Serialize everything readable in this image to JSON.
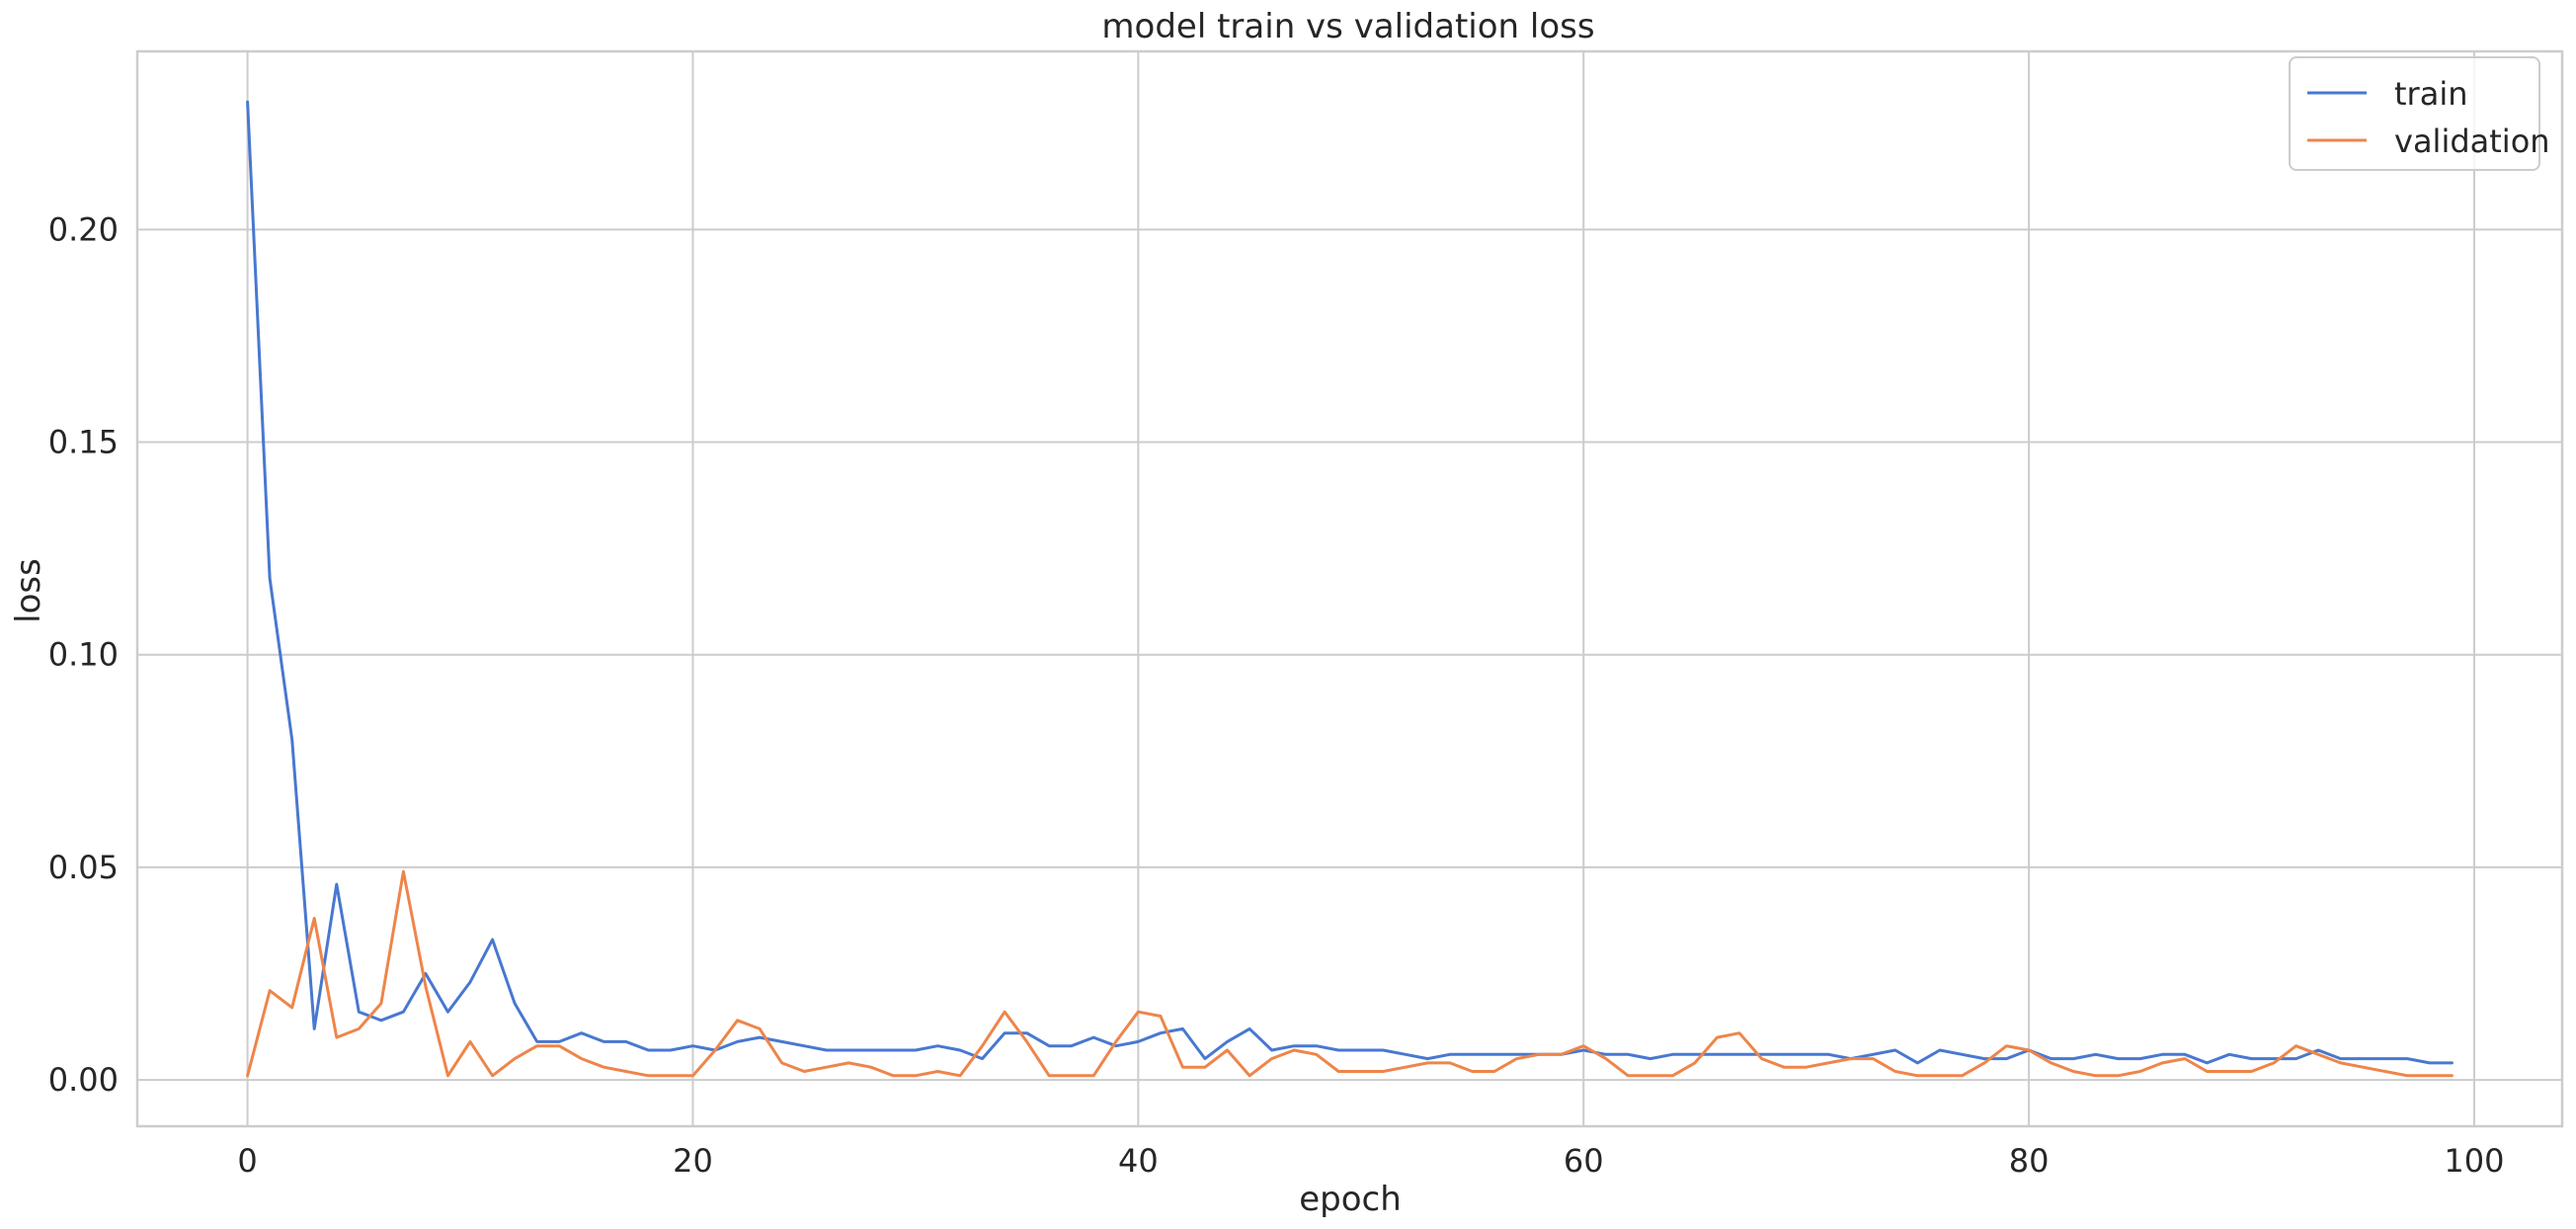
{
  "chart_data": {
    "type": "line",
    "title": "model train vs validation loss",
    "xlabel": "epoch",
    "ylabel": "loss",
    "xlim": [
      -4.95,
      103.95
    ],
    "ylim": [
      -0.0109,
      0.2419
    ],
    "xticks": [
      0,
      20,
      40,
      60,
      80,
      100
    ],
    "xtick_labels": [
      "0",
      "20",
      "40",
      "60",
      "80",
      "100"
    ],
    "yticks": [
      0.0,
      0.05,
      0.1,
      0.15,
      0.2
    ],
    "ytick_labels": [
      "0.00",
      "0.05",
      "0.10",
      "0.15",
      "0.20"
    ],
    "grid": true,
    "legend_position": "top-right",
    "series": [
      {
        "name": "train",
        "color": "#4878d0",
        "x": [
          0,
          1,
          2,
          3,
          4,
          5,
          6,
          7,
          8,
          9,
          10,
          11,
          12,
          13,
          14,
          15,
          16,
          17,
          18,
          19,
          20,
          21,
          22,
          23,
          24,
          25,
          26,
          27,
          28,
          29,
          30,
          31,
          32,
          33,
          34,
          35,
          36,
          37,
          38,
          39,
          40,
          41,
          42,
          43,
          44,
          45,
          46,
          47,
          48,
          49,
          50,
          51,
          52,
          53,
          54,
          55,
          56,
          57,
          58,
          59,
          60,
          61,
          62,
          63,
          64,
          65,
          66,
          67,
          68,
          69,
          70,
          71,
          72,
          73,
          74,
          75,
          76,
          77,
          78,
          79,
          80,
          81,
          82,
          83,
          84,
          85,
          86,
          87,
          88,
          89,
          90,
          91,
          92,
          93,
          94,
          95,
          96,
          97,
          98,
          99
        ],
        "values": [
          0.23,
          0.118,
          0.08,
          0.012,
          0.046,
          0.016,
          0.014,
          0.016,
          0.025,
          0.016,
          0.023,
          0.033,
          0.018,
          0.009,
          0.009,
          0.011,
          0.009,
          0.009,
          0.007,
          0.007,
          0.008,
          0.007,
          0.009,
          0.01,
          0.009,
          0.008,
          0.007,
          0.007,
          0.007,
          0.007,
          0.007,
          0.008,
          0.007,
          0.005,
          0.011,
          0.011,
          0.008,
          0.008,
          0.01,
          0.008,
          0.009,
          0.011,
          0.012,
          0.005,
          0.009,
          0.012,
          0.007,
          0.008,
          0.008,
          0.007,
          0.007,
          0.007,
          0.006,
          0.005,
          0.006,
          0.006,
          0.006,
          0.006,
          0.006,
          0.006,
          0.007,
          0.006,
          0.006,
          0.005,
          0.006,
          0.006,
          0.006,
          0.006,
          0.006,
          0.006,
          0.006,
          0.006,
          0.005,
          0.006,
          0.007,
          0.004,
          0.007,
          0.006,
          0.005,
          0.005,
          0.007,
          0.005,
          0.005,
          0.006,
          0.005,
          0.005,
          0.006,
          0.006,
          0.004,
          0.006,
          0.005,
          0.005,
          0.005,
          0.007,
          0.005,
          0.005,
          0.005,
          0.005,
          0.004,
          0.004
        ]
      },
      {
        "name": "validation",
        "color": "#ee854a",
        "x": [
          0,
          1,
          2,
          3,
          4,
          5,
          6,
          7,
          8,
          9,
          10,
          11,
          12,
          13,
          14,
          15,
          16,
          17,
          18,
          19,
          20,
          21,
          22,
          23,
          24,
          25,
          26,
          27,
          28,
          29,
          30,
          31,
          32,
          33,
          34,
          35,
          36,
          37,
          38,
          39,
          40,
          41,
          42,
          43,
          44,
          45,
          46,
          47,
          48,
          49,
          50,
          51,
          52,
          53,
          54,
          55,
          56,
          57,
          58,
          59,
          60,
          61,
          62,
          63,
          64,
          65,
          66,
          67,
          68,
          69,
          70,
          71,
          72,
          73,
          74,
          75,
          76,
          77,
          78,
          79,
          80,
          81,
          82,
          83,
          84,
          85,
          86,
          87,
          88,
          89,
          90,
          91,
          92,
          93,
          94,
          95,
          96,
          97,
          98,
          99
        ],
        "values": [
          0.001,
          0.021,
          0.017,
          0.038,
          0.01,
          0.012,
          0.018,
          0.049,
          0.022,
          0.001,
          0.009,
          0.001,
          0.005,
          0.008,
          0.008,
          0.005,
          0.003,
          0.002,
          0.001,
          0.001,
          0.001,
          0.007,
          0.014,
          0.012,
          0.004,
          0.002,
          0.003,
          0.004,
          0.003,
          0.001,
          0.001,
          0.002,
          0.001,
          0.008,
          0.016,
          0.009,
          0.001,
          0.001,
          0.001,
          0.009,
          0.016,
          0.015,
          0.003,
          0.003,
          0.007,
          0.001,
          0.005,
          0.007,
          0.006,
          0.002,
          0.002,
          0.002,
          0.003,
          0.004,
          0.004,
          0.002,
          0.002,
          0.005,
          0.006,
          0.006,
          0.008,
          0.005,
          0.001,
          0.001,
          0.001,
          0.004,
          0.01,
          0.011,
          0.005,
          0.003,
          0.003,
          0.004,
          0.005,
          0.005,
          0.002,
          0.001,
          0.001,
          0.001,
          0.004,
          0.008,
          0.007,
          0.004,
          0.002,
          0.001,
          0.001,
          0.002,
          0.004,
          0.005,
          0.002,
          0.002,
          0.002,
          0.004,
          0.008,
          0.006,
          0.004,
          0.003,
          0.002,
          0.001,
          0.001,
          0.001
        ]
      }
    ]
  }
}
